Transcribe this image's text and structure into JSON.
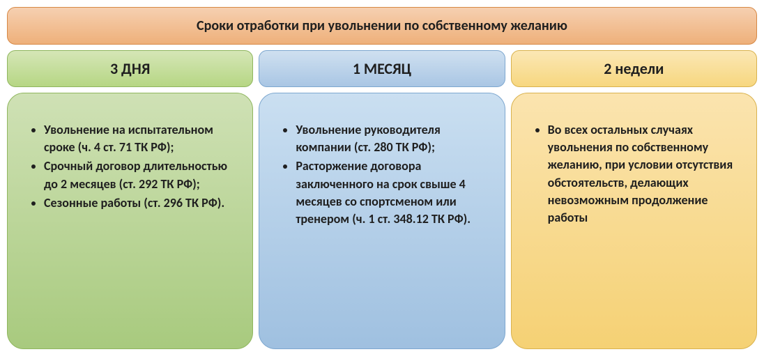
{
  "title": {
    "text": "Сроки отработки при увольнении по собственному желанию",
    "fontsize": 20,
    "bg_gradient_top": "#f6d0b1",
    "bg_gradient_bottom": "#eeb07a",
    "border_color": "#d68845",
    "text_color": "#1f1f1f"
  },
  "columns": [
    {
      "id": "three-days",
      "header": "3 ДНЯ",
      "header_fontsize": 22,
      "header_bg_top": "#d5e6b7",
      "header_bg_bottom": "#b6d684",
      "header_border": "#8fb65e",
      "body_bg_top": "#cfe1b5",
      "body_bg_bottom": "#a8ca7e",
      "body_border": "#8fb65e",
      "text_color": "#1f1f1f",
      "item_fontsize": 18,
      "items": [
        "Увольнение на испытательном сроке (ч. 4 ст. 71 ТК РФ);",
        "Срочный договор длительностью до 2 месяцев (ст. 292 ТК РФ);",
        "Сезонные работы (ст. 296 ТК РФ)."
      ]
    },
    {
      "id": "one-month",
      "header": "1 МЕСЯЦ",
      "header_fontsize": 22,
      "header_bg_top": "#cfe0f0",
      "header_bg_bottom": "#a9c6e4",
      "header_border": "#7da7cf",
      "body_bg_top": "#cadff1",
      "body_bg_bottom": "#9fc0e0",
      "body_border": "#7da7cf",
      "text_color": "#1f1f1f",
      "item_fontsize": 18,
      "items": [
        "Увольнение руководителя компании (ст. 280 ТК РФ);",
        "Расторжение договора заключенного на срок свыше 4 месяцев со спортсменом или тренером (ч. 1 ст. 348.12 ТК РФ)."
      ]
    },
    {
      "id": "two-weeks",
      "header": "2 недели",
      "header_fontsize": 22,
      "header_bg_top": "#fbe7b5",
      "header_bg_bottom": "#f7d77f",
      "header_border": "#d9b24e",
      "body_bg_top": "#fbe4af",
      "body_bg_bottom": "#f5d174",
      "body_border": "#d9b24e",
      "text_color": "#1f1f1f",
      "item_fontsize": 18,
      "items": [
        "Во всех остальных случаях увольнения по собственному желанию, при условии отсутствия обстоятельств, делающих невозможным продолжение работы"
      ]
    }
  ]
}
